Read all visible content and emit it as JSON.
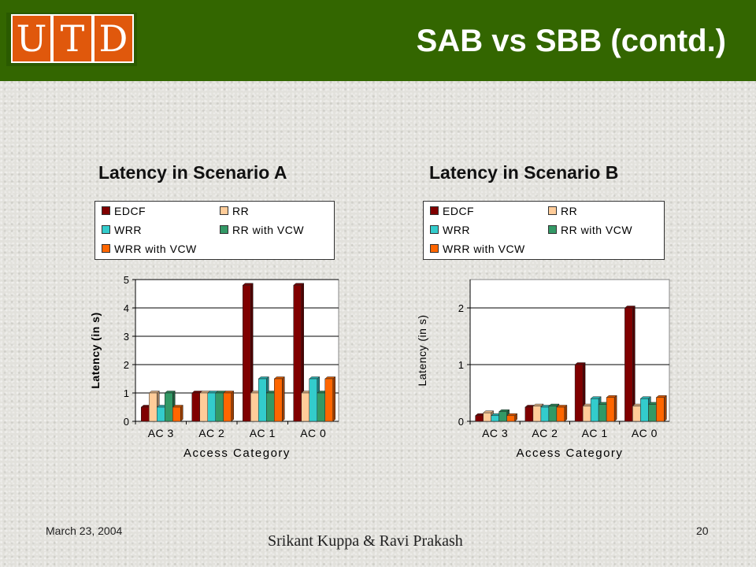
{
  "slide": {
    "title": "SAB vs SBB (contd.)",
    "logo_letters": [
      "U",
      "T",
      "D"
    ],
    "date": "March 23, 2004",
    "page_number": "20",
    "author": "Srikant Kuppa & Ravi Prakash"
  },
  "colors": {
    "header_bg": "#336600",
    "logo_orange": "#e0580c",
    "series": [
      "#800000",
      "#ffcc99",
      "#33cccc",
      "#339966",
      "#ff6600"
    ]
  },
  "chart_data": [
    {
      "type": "bar",
      "title": "Latency in Scenario A",
      "xlabel": "Access Category",
      "ylabel": "Latency (in s)",
      "ylim": [
        0,
        5
      ],
      "yticks": [
        "0",
        "1",
        "2",
        "3",
        "4",
        "5"
      ],
      "grid": true,
      "legend_position": "top",
      "categories": [
        "AC 3",
        "AC 2",
        "AC 1",
        "AC 0"
      ],
      "series": [
        {
          "name": "EDCF",
          "values": [
            0.5,
            1.0,
            4.8,
            4.8
          ]
        },
        {
          "name": "RR",
          "values": [
            1.0,
            1.0,
            1.0,
            1.0
          ]
        },
        {
          "name": "WRR",
          "values": [
            0.5,
            1.0,
            1.5,
            1.5
          ]
        },
        {
          "name": "RR with VCW",
          "values": [
            1.0,
            1.0,
            1.0,
            1.0
          ]
        },
        {
          "name": "WRR with VCW",
          "values": [
            0.5,
            1.0,
            1.5,
            1.5
          ]
        }
      ]
    },
    {
      "type": "bar",
      "title": "Latency in Scenario B",
      "xlabel": "Access Category",
      "ylabel": "Latency (in s)",
      "ylim": [
        0,
        2.5
      ],
      "yticks": [
        "0",
        "1",
        "2"
      ],
      "grid": true,
      "legend_position": "top",
      "categories": [
        "AC 3",
        "AC 2",
        "AC 1",
        "AC 0"
      ],
      "series": [
        {
          "name": "EDCF",
          "values": [
            0.1,
            0.25,
            1.0,
            2.0
          ]
        },
        {
          "name": "RR",
          "values": [
            0.15,
            0.27,
            0.27,
            0.27
          ]
        },
        {
          "name": "WRR",
          "values": [
            0.1,
            0.25,
            0.4,
            0.4
          ]
        },
        {
          "name": "RR with VCW",
          "values": [
            0.17,
            0.27,
            0.3,
            0.3
          ]
        },
        {
          "name": "WRR with VCW",
          "values": [
            0.1,
            0.25,
            0.42,
            0.42
          ]
        }
      ]
    }
  ]
}
